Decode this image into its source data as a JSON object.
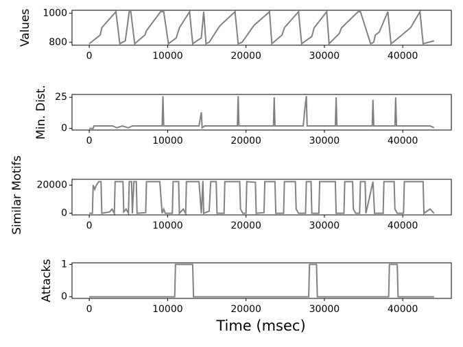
{
  "chart_data": [
    {
      "type": "line",
      "ylabel": "Values",
      "xlim": [
        -2200,
        46200
      ],
      "ylim": [
        780,
        1020
      ],
      "xticks": [
        0,
        10000,
        20000,
        30000,
        40000
      ],
      "yticks": [
        800,
        1000
      ],
      "x": [
        0,
        1400,
        1600,
        3400,
        3900,
        4600,
        5100,
        5300,
        5800,
        7100,
        7300,
        9100,
        9500,
        10100,
        11100,
        11500,
        12800,
        13200,
        14300,
        14600,
        14900,
        15300,
        16500,
        16800,
        18600,
        19000,
        19500,
        20800,
        21100,
        23000,
        23300,
        24600,
        24900,
        26700,
        27100,
        28400,
        28700,
        30300,
        30600,
        31900,
        32200,
        34300,
        34600,
        35900,
        36300,
        36500,
        37000,
        38100,
        38500,
        39000,
        41000,
        42200,
        42600,
        44000
      ],
      "series": [
        {
          "color": "#808080",
          "values": [
            790,
            850,
            900,
            1010,
            790,
            810,
            1010,
            1010,
            790,
            850,
            880,
            1010,
            1010,
            790,
            830,
            900,
            1010,
            790,
            830,
            1010,
            790,
            800,
            900,
            920,
            1010,
            790,
            800,
            900,
            920,
            1010,
            790,
            850,
            900,
            1010,
            790,
            840,
            900,
            1010,
            790,
            860,
            900,
            1010,
            1010,
            790,
            800,
            850,
            870,
            1010,
            790,
            810,
            900,
            1010,
            790,
            810
          ]
        }
      ]
    },
    {
      "type": "line",
      "ylabel": "Min. Dist.",
      "xlim": [
        -2200,
        46200
      ],
      "ylim": [
        -1.3,
        27.3
      ],
      "xticks": [
        0,
        10000,
        20000,
        30000,
        40000
      ],
      "yticks": [
        0,
        25
      ],
      "x": [
        0,
        500,
        600,
        3000,
        3500,
        4200,
        5000,
        5500,
        9300,
        9400,
        9500,
        14000,
        14300,
        14400,
        14700,
        18900,
        19000,
        19100,
        23500,
        23600,
        23700,
        27300,
        27500,
        27700,
        27800,
        31400,
        31500,
        31600,
        36100,
        36200,
        36300,
        39000,
        39100,
        39200,
        43500,
        44000
      ],
      "series": [
        {
          "color": "#808080",
          "values": [
            0,
            0,
            2,
            2,
            0.5,
            2,
            0.5,
            2,
            2,
            26,
            2,
            2,
            13,
            0.5,
            2,
            2,
            26,
            2,
            2,
            25,
            2,
            2,
            15,
            26,
            2,
            2,
            25,
            2,
            2,
            23,
            2,
            2,
            25,
            2,
            2,
            0.5
          ]
        }
      ]
    },
    {
      "type": "line",
      "ylabel": "Similar Motifs",
      "xlim": [
        -2200,
        46200
      ],
      "ylim": [
        -1150,
        24150
      ],
      "xticks": [
        0,
        10000,
        20000,
        30000,
        40000
      ],
      "yticks": [
        0,
        20000
      ],
      "x": [
        0,
        400,
        500,
        700,
        900,
        1200,
        1500,
        1600,
        2600,
        2900,
        3200,
        3300,
        4300,
        4400,
        4700,
        5000,
        5100,
        5400,
        5500,
        5700,
        6000,
        6100,
        7200,
        7300,
        9000,
        9300,
        9500,
        9700,
        10600,
        10700,
        11400,
        11500,
        12000,
        12300,
        12400,
        14000,
        14300,
        14500,
        14600,
        15300,
        15500,
        16200,
        16300,
        17200,
        17300,
        19200,
        19300,
        19600,
        20000,
        20100,
        21200,
        21300,
        22300,
        22400,
        23700,
        23800,
        24800,
        24900,
        26300,
        26400,
        26700,
        27600,
        27700,
        28300,
        28400,
        29300,
        29400,
        31400,
        31500,
        32500,
        32600,
        33600,
        33700,
        34000,
        34500,
        34600,
        35200,
        35300,
        36200,
        36400,
        37500,
        37600,
        38900,
        39000,
        39300,
        40100,
        40200,
        42600,
        42700,
        43500,
        44000
      ],
      "series": [
        {
          "color": "#808080",
          "values": [
            0,
            0,
            20000,
            17000,
            20000,
            22500,
            22500,
            0,
            1000,
            3000,
            0,
            22500,
            22500,
            1000,
            3000,
            0,
            22500,
            22500,
            0,
            22500,
            22500,
            0,
            500,
            22500,
            22500,
            0,
            3000,
            0,
            0,
            22500,
            22500,
            0,
            3000,
            0,
            22500,
            22500,
            0,
            23000,
            0,
            1500,
            22500,
            22500,
            0,
            0,
            22500,
            22500,
            3000,
            0,
            0,
            22500,
            22000,
            0,
            500,
            22500,
            22500,
            0,
            0,
            22500,
            22500,
            3000,
            0,
            0,
            22500,
            22500,
            0,
            0,
            22500,
            22500,
            0,
            0,
            22500,
            22500,
            3000,
            0,
            0,
            22500,
            22500,
            0,
            22500,
            0,
            0,
            22500,
            22500,
            3000,
            0,
            0,
            22500,
            22500,
            0,
            3000,
            0
          ]
        }
      ]
    },
    {
      "type": "line",
      "ylabel": "Attacks",
      "xlabel": "Time (msec)",
      "xlim": [
        -2200,
        46200
      ],
      "ylim": [
        -0.05,
        1.05
      ],
      "xticks": [
        0,
        10000,
        20000,
        30000,
        40000
      ],
      "yticks": [
        0,
        1
      ],
      "x": [
        0,
        10900,
        11000,
        13200,
        13300,
        28000,
        28100,
        29000,
        29100,
        38200,
        38300,
        39300,
        39400,
        44000
      ],
      "series": [
        {
          "color": "#808080",
          "values": [
            0,
            0,
            1,
            1,
            0,
            0,
            1,
            1,
            0,
            0,
            1,
            1,
            0,
            0
          ]
        }
      ]
    }
  ]
}
